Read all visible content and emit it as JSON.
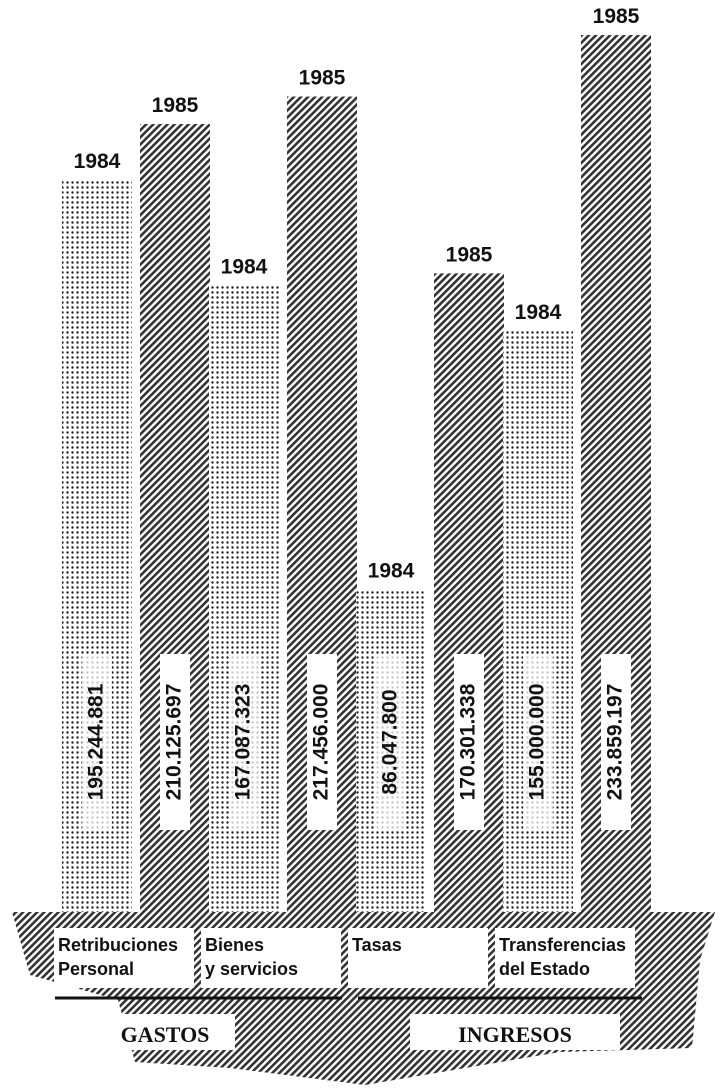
{
  "chart_data": {
    "type": "bar",
    "categories": [
      [
        "Retribuciones",
        "Personal"
      ],
      [
        "Bienes",
        "y servicios"
      ],
      [
        "Tasas"
      ],
      [
        "Transferencias",
        "del Estado"
      ]
    ],
    "groups": [
      "GASTOS",
      "INGRESOS"
    ],
    "series": [
      {
        "name": "1984",
        "color": "#111111",
        "values": [
          195244881,
          167087323,
          86047800,
          155000000
        ],
        "value_labels": [
          "195.244.881",
          "167.087.323",
          "86.047.800",
          "155.000.000"
        ]
      },
      {
        "name": "1985",
        "color": "#222222",
        "values": [
          210125697,
          217456000,
          170301338,
          233859197
        ],
        "value_labels": [
          "210.125.697",
          "217.456.000",
          "170.301.338",
          "233.859.197"
        ]
      }
    ],
    "ylim": [
      0,
      240000000
    ]
  }
}
